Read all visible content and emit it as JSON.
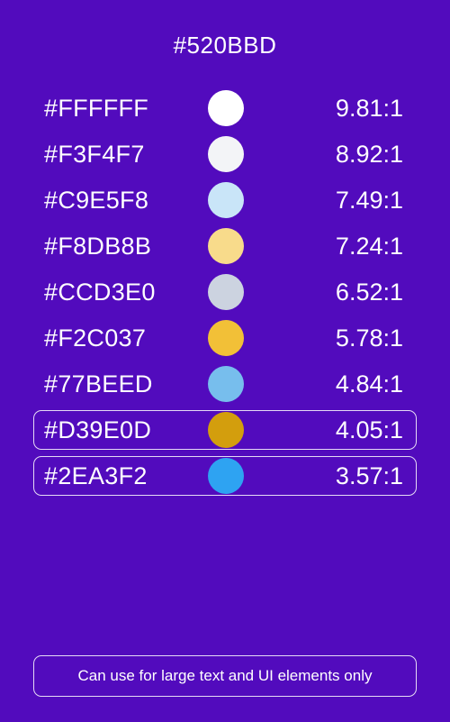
{
  "header": {
    "background_hex": "#520BBD"
  },
  "rows": [
    {
      "hex": "#FFFFFF",
      "color": "#FFFFFF",
      "ratio": "9.81:1",
      "outlined": false
    },
    {
      "hex": "#F3F4F7",
      "color": "#F3F4F7",
      "ratio": "8.92:1",
      "outlined": false
    },
    {
      "hex": "#C9E5F8",
      "color": "#C9E5F8",
      "ratio": "7.49:1",
      "outlined": false
    },
    {
      "hex": "#F8DB8B",
      "color": "#F8DB8B",
      "ratio": "7.24:1",
      "outlined": false
    },
    {
      "hex": "#CCD3E0",
      "color": "#CCD3E0",
      "ratio": "6.52:1",
      "outlined": false
    },
    {
      "hex": "#F2C037",
      "color": "#F2C037",
      "ratio": "5.78:1",
      "outlined": false
    },
    {
      "hex": "#77BEED",
      "color": "#77BEED",
      "ratio": "4.84:1",
      "outlined": false
    },
    {
      "hex": "#D39E0D",
      "color": "#D39E0D",
      "ratio": "4.05:1",
      "outlined": true
    },
    {
      "hex": "#2EA3F2",
      "color": "#2EA3F2",
      "ratio": "3.57:1",
      "outlined": true
    }
  ],
  "footer": {
    "note": "Can use for large text and UI elements only"
  }
}
